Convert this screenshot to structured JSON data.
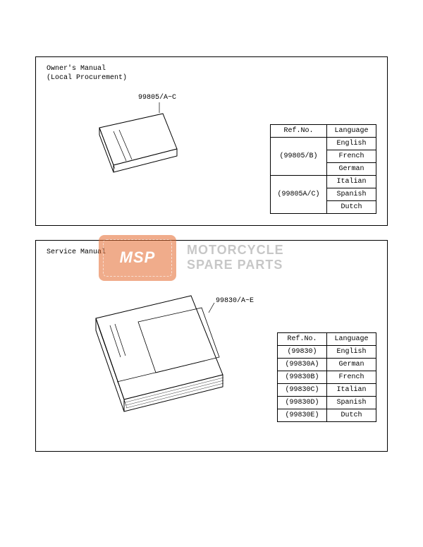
{
  "panel1": {
    "title_line1": "Owner's Manual",
    "title_line2": "(Local Procurement)",
    "ref_label": "99805/A~C",
    "table": {
      "headers": [
        "Ref.No.",
        "Language"
      ],
      "groups": [
        {
          "ref": "(99805/B)",
          "langs": [
            "English",
            "French",
            "German"
          ]
        },
        {
          "ref": "(99805A/C)",
          "langs": [
            "Italian",
            "Spanish",
            "Dutch"
          ]
        }
      ]
    },
    "book": {
      "stroke": "#000000",
      "fill": "#ffffff",
      "width": 120,
      "height": 90
    }
  },
  "panel2": {
    "title": "Service Manual",
    "ref_label": "99830/A~E",
    "table": {
      "headers": [
        "Ref.No.",
        "Language"
      ],
      "rows": [
        {
          "ref": "(99830)",
          "lang": "English"
        },
        {
          "ref": "(99830A)",
          "lang": "German"
        },
        {
          "ref": "(99830B)",
          "lang": "French"
        },
        {
          "ref": "(99830C)",
          "lang": "Italian"
        },
        {
          "ref": "(99830D)",
          "lang": "Spanish"
        },
        {
          "ref": "(99830E)",
          "lang": "Dutch"
        }
      ]
    },
    "book": {
      "stroke": "#000000",
      "fill": "#ffffff",
      "width": 190,
      "height": 170
    }
  },
  "watermark": {
    "badge": "MSP",
    "line1": "MOTORCYCLE",
    "line2": "SPARE PARTS",
    "badge_bg": "#e46a2e",
    "text_color": "#9a9a9a"
  },
  "colors": {
    "border": "#000000",
    "background": "#ffffff"
  }
}
